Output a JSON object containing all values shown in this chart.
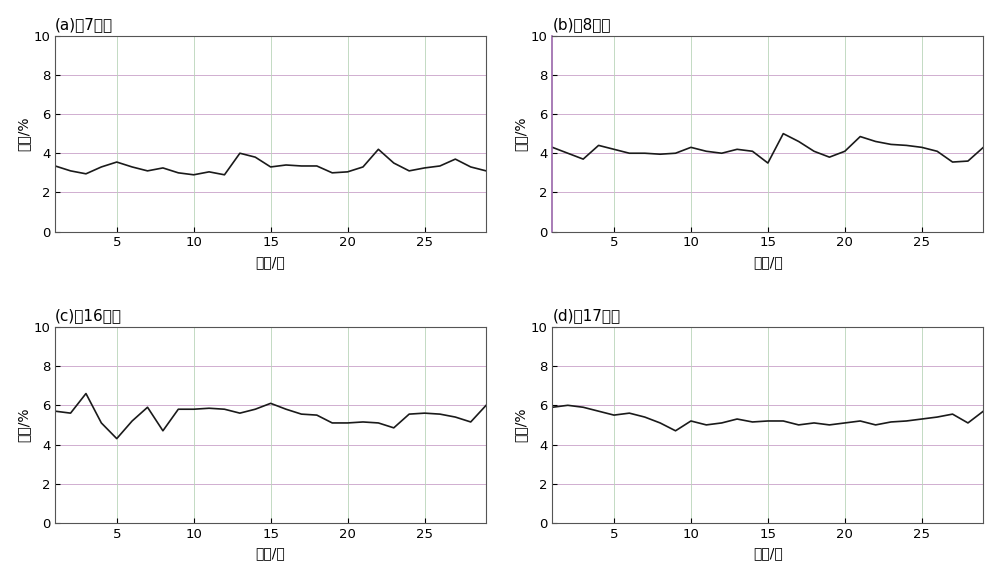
{
  "subplots": [
    {
      "label": "(a)：7点钟",
      "x": [
        1,
        2,
        3,
        4,
        5,
        6,
        7,
        8,
        9,
        10,
        11,
        12,
        13,
        14,
        15,
        16,
        17,
        18,
        19,
        20,
        21,
        22,
        23,
        24,
        25,
        26,
        27,
        28,
        29
      ],
      "y": [
        3.35,
        3.1,
        2.95,
        3.3,
        3.55,
        3.3,
        3.1,
        3.25,
        3.0,
        2.9,
        3.05,
        2.9,
        4.0,
        3.8,
        3.3,
        3.4,
        3.35,
        3.35,
        3.0,
        3.05,
        3.3,
        4.2,
        3.5,
        3.1,
        3.25,
        3.35,
        3.7,
        3.3,
        3.1
      ]
    },
    {
      "label": "(b)：8点钟",
      "x": [
        1,
        2,
        3,
        4,
        5,
        6,
        7,
        8,
        9,
        10,
        11,
        12,
        13,
        14,
        15,
        16,
        17,
        18,
        19,
        20,
        21,
        22,
        23,
        24,
        25,
        26,
        27,
        28,
        29
      ],
      "y": [
        4.3,
        4.0,
        3.7,
        4.4,
        4.2,
        4.0,
        4.0,
        3.95,
        4.0,
        4.3,
        4.1,
        4.0,
        4.2,
        4.1,
        3.5,
        5.0,
        4.6,
        4.1,
        3.8,
        4.1,
        4.85,
        4.6,
        4.45,
        4.4,
        4.3,
        4.1,
        3.55,
        3.6,
        4.3
      ]
    },
    {
      "label": "(c)：16点钟",
      "x": [
        1,
        2,
        3,
        4,
        5,
        6,
        7,
        8,
        9,
        10,
        11,
        12,
        13,
        14,
        15,
        16,
        17,
        18,
        19,
        20,
        21,
        22,
        23,
        24,
        25,
        26,
        27,
        28,
        29
      ],
      "y": [
        5.7,
        5.6,
        6.6,
        5.1,
        4.3,
        5.2,
        5.9,
        4.7,
        5.8,
        5.8,
        5.85,
        5.8,
        5.6,
        5.8,
        6.1,
        5.8,
        5.55,
        5.5,
        5.1,
        5.1,
        5.15,
        5.1,
        4.85,
        5.55,
        5.6,
        5.55,
        5.4,
        5.15,
        6.0
      ]
    },
    {
      "label": "(d)：17点钟",
      "x": [
        1,
        2,
        3,
        4,
        5,
        6,
        7,
        8,
        9,
        10,
        11,
        12,
        13,
        14,
        15,
        16,
        17,
        18,
        19,
        20,
        21,
        22,
        23,
        24,
        25,
        26,
        27,
        28,
        29
      ],
      "y": [
        5.9,
        6.0,
        5.9,
        5.7,
        5.5,
        5.6,
        5.4,
        5.1,
        4.7,
        5.2,
        5.0,
        5.1,
        5.3,
        5.15,
        5.2,
        5.2,
        5.0,
        5.1,
        5.0,
        5.1,
        5.2,
        5.0,
        5.15,
        5.2,
        5.3,
        5.4,
        5.55,
        5.1,
        5.7
      ]
    }
  ],
  "ylim": [
    0,
    10
  ],
  "yticks": [
    0,
    2,
    4,
    6,
    8,
    10
  ],
  "xlim": [
    1,
    29
  ],
  "xticks": [
    5,
    10,
    15,
    20,
    25
  ],
  "xlabel": "日期/天",
  "ylabel": "比例/%",
  "line_color": "#1a1a1a",
  "line_width": 1.2,
  "grid_color_h": "#c8a0c8",
  "grid_color_v": "#b8d4b8",
  "grid_alpha": 0.85,
  "left_spine_color_b": "#9966aa",
  "background_color": "#ffffff",
  "title_fontsize": 11,
  "axis_fontsize": 10,
  "tick_fontsize": 9.5
}
